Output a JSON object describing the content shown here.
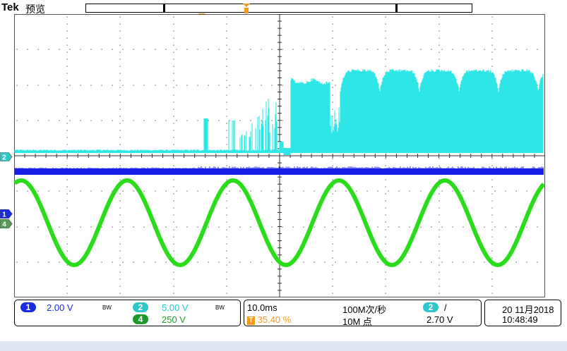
{
  "header": {
    "brand": "Tek",
    "mode": "预览"
  },
  "markers": {
    "trigger": "T",
    "channel_markers": [
      "2",
      "1",
      "4"
    ]
  },
  "colors": {
    "ch1": "#1620e8",
    "ch2": "#2ee6e6",
    "ch4": "#2bdc1b",
    "trigger": "#f39a1b",
    "grid": "#555555"
  },
  "status": {
    "ch1": {
      "num": "1",
      "scale": "2.00 V",
      "bw": "BW"
    },
    "ch2": {
      "num": "2",
      "scale": "5.00 V",
      "bw": "BW"
    },
    "ch4": {
      "num": "4",
      "scale": "250 V"
    },
    "timebase": "10.0ms",
    "trigger_pos": "35.40 %",
    "sample_rate": "100M次/秒",
    "record_length": "10M 点",
    "trig_source": "2",
    "trig_slope": "/",
    "trig_level": "2.70 V",
    "date": "20 11月2018",
    "time": "10:48:49"
  }
}
